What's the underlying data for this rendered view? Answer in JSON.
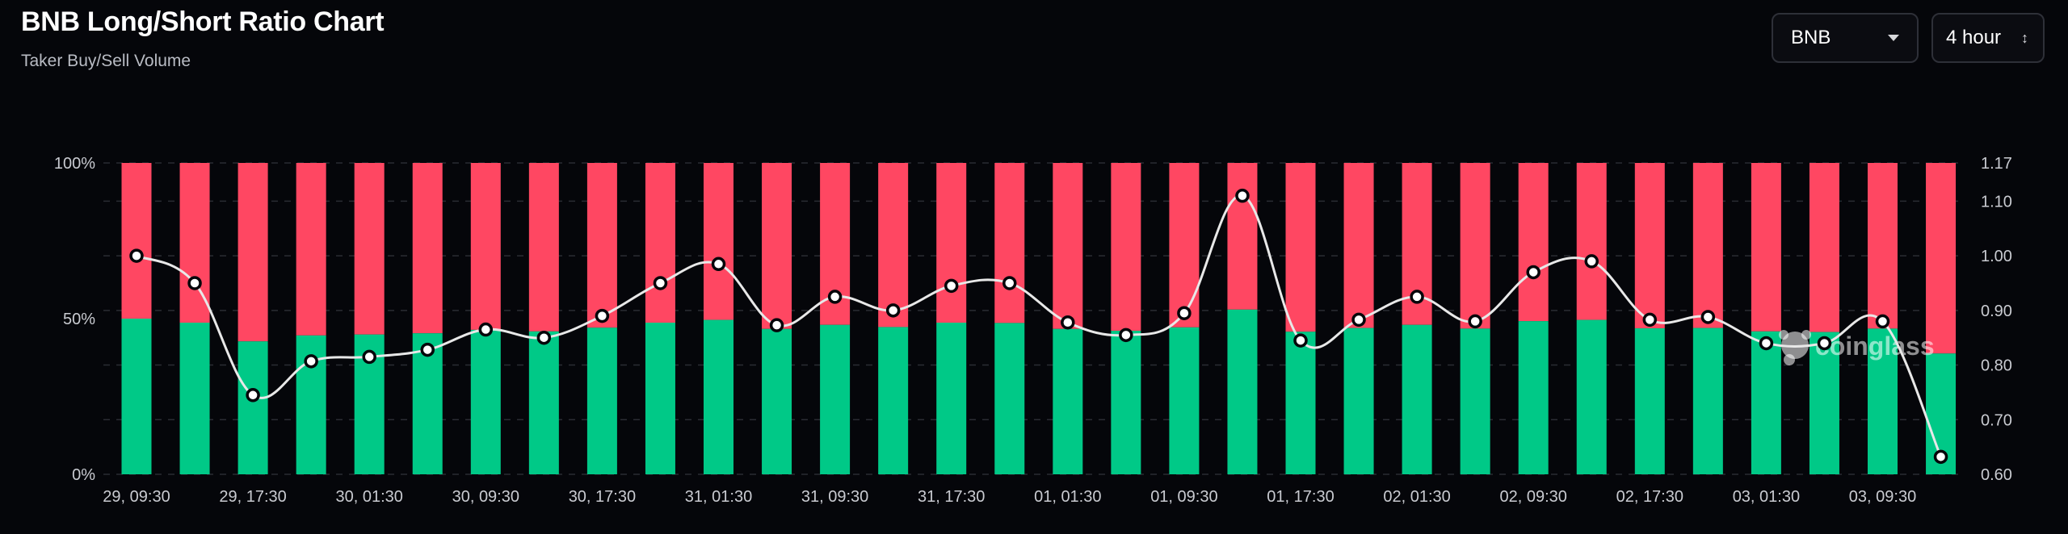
{
  "header": {
    "title": "BNB Long/Short Ratio Chart",
    "subtitle": "Taker Buy/Sell Volume"
  },
  "controls": {
    "symbol": "BNB",
    "interval": "4 hour"
  },
  "watermark": "coinglass",
  "colors": {
    "buy": "#00c987",
    "sell": "#ff4762",
    "line": "#e8e8e8",
    "background": "#05060a"
  },
  "chart_data": {
    "type": "bar",
    "stacked": true,
    "grid": true,
    "x_tick_labels": [
      "29, 09:30",
      "29, 17:30",
      "30, 01:30",
      "30, 09:30",
      "30, 17:30",
      "31, 01:30",
      "31, 09:30",
      "31, 17:30",
      "01, 01:30",
      "01, 09:30",
      "01, 17:30",
      "02, 01:30",
      "02, 09:30",
      "02, 17:30",
      "03, 01:30",
      "03, 09:30"
    ],
    "y_left_ticks": [
      "0%",
      "50%",
      "100%"
    ],
    "y_left_lim": [
      0,
      100
    ],
    "y_right_ticks": [
      "0.60",
      "0.70",
      "0.80",
      "0.90",
      "1.00",
      "1.10",
      "1.17"
    ],
    "y_right_lim": [
      0.6,
      1.17
    ],
    "series": [
      {
        "axis": "left",
        "values": [
          50,
          48.7,
          42.7,
          44.6,
          44.9,
          45.3,
          46.4,
          45.9,
          47.1,
          48.7,
          49.6,
          46.7,
          48,
          47.3,
          48.7,
          48.6,
          46.7,
          46.1,
          47.2,
          52.9,
          45.8,
          47,
          48,
          46.8,
          49.2,
          49.6,
          46.9,
          47,
          45.9,
          45.7,
          46.8,
          38.8
        ]
      },
      {
        "axis": "left",
        "values": [
          50,
          51.3,
          57.3,
          55.4,
          55.1,
          54.7,
          53.6,
          54.1,
          52.9,
          51.3,
          50.4,
          53.3,
          52,
          52.7,
          51.3,
          51.4,
          53.3,
          53.9,
          52.8,
          47.1,
          54.2,
          53,
          52,
          53.2,
          50.8,
          50.4,
          53.1,
          53,
          54.1,
          54.3,
          53.2,
          61.2
        ]
      },
      {
        "axis": "right",
        "values": [
          1.0,
          0.95,
          0.745,
          0.807,
          0.815,
          0.828,
          0.865,
          0.85,
          0.89,
          0.95,
          0.985,
          0.873,
          0.925,
          0.9,
          0.945,
          0.95,
          0.878,
          0.855,
          0.895,
          1.11,
          0.845,
          0.883,
          0.925,
          0.88,
          0.97,
          0.99,
          0.883,
          0.888,
          0.84,
          0.84,
          0.88,
          0.632
        ]
      }
    ]
  }
}
